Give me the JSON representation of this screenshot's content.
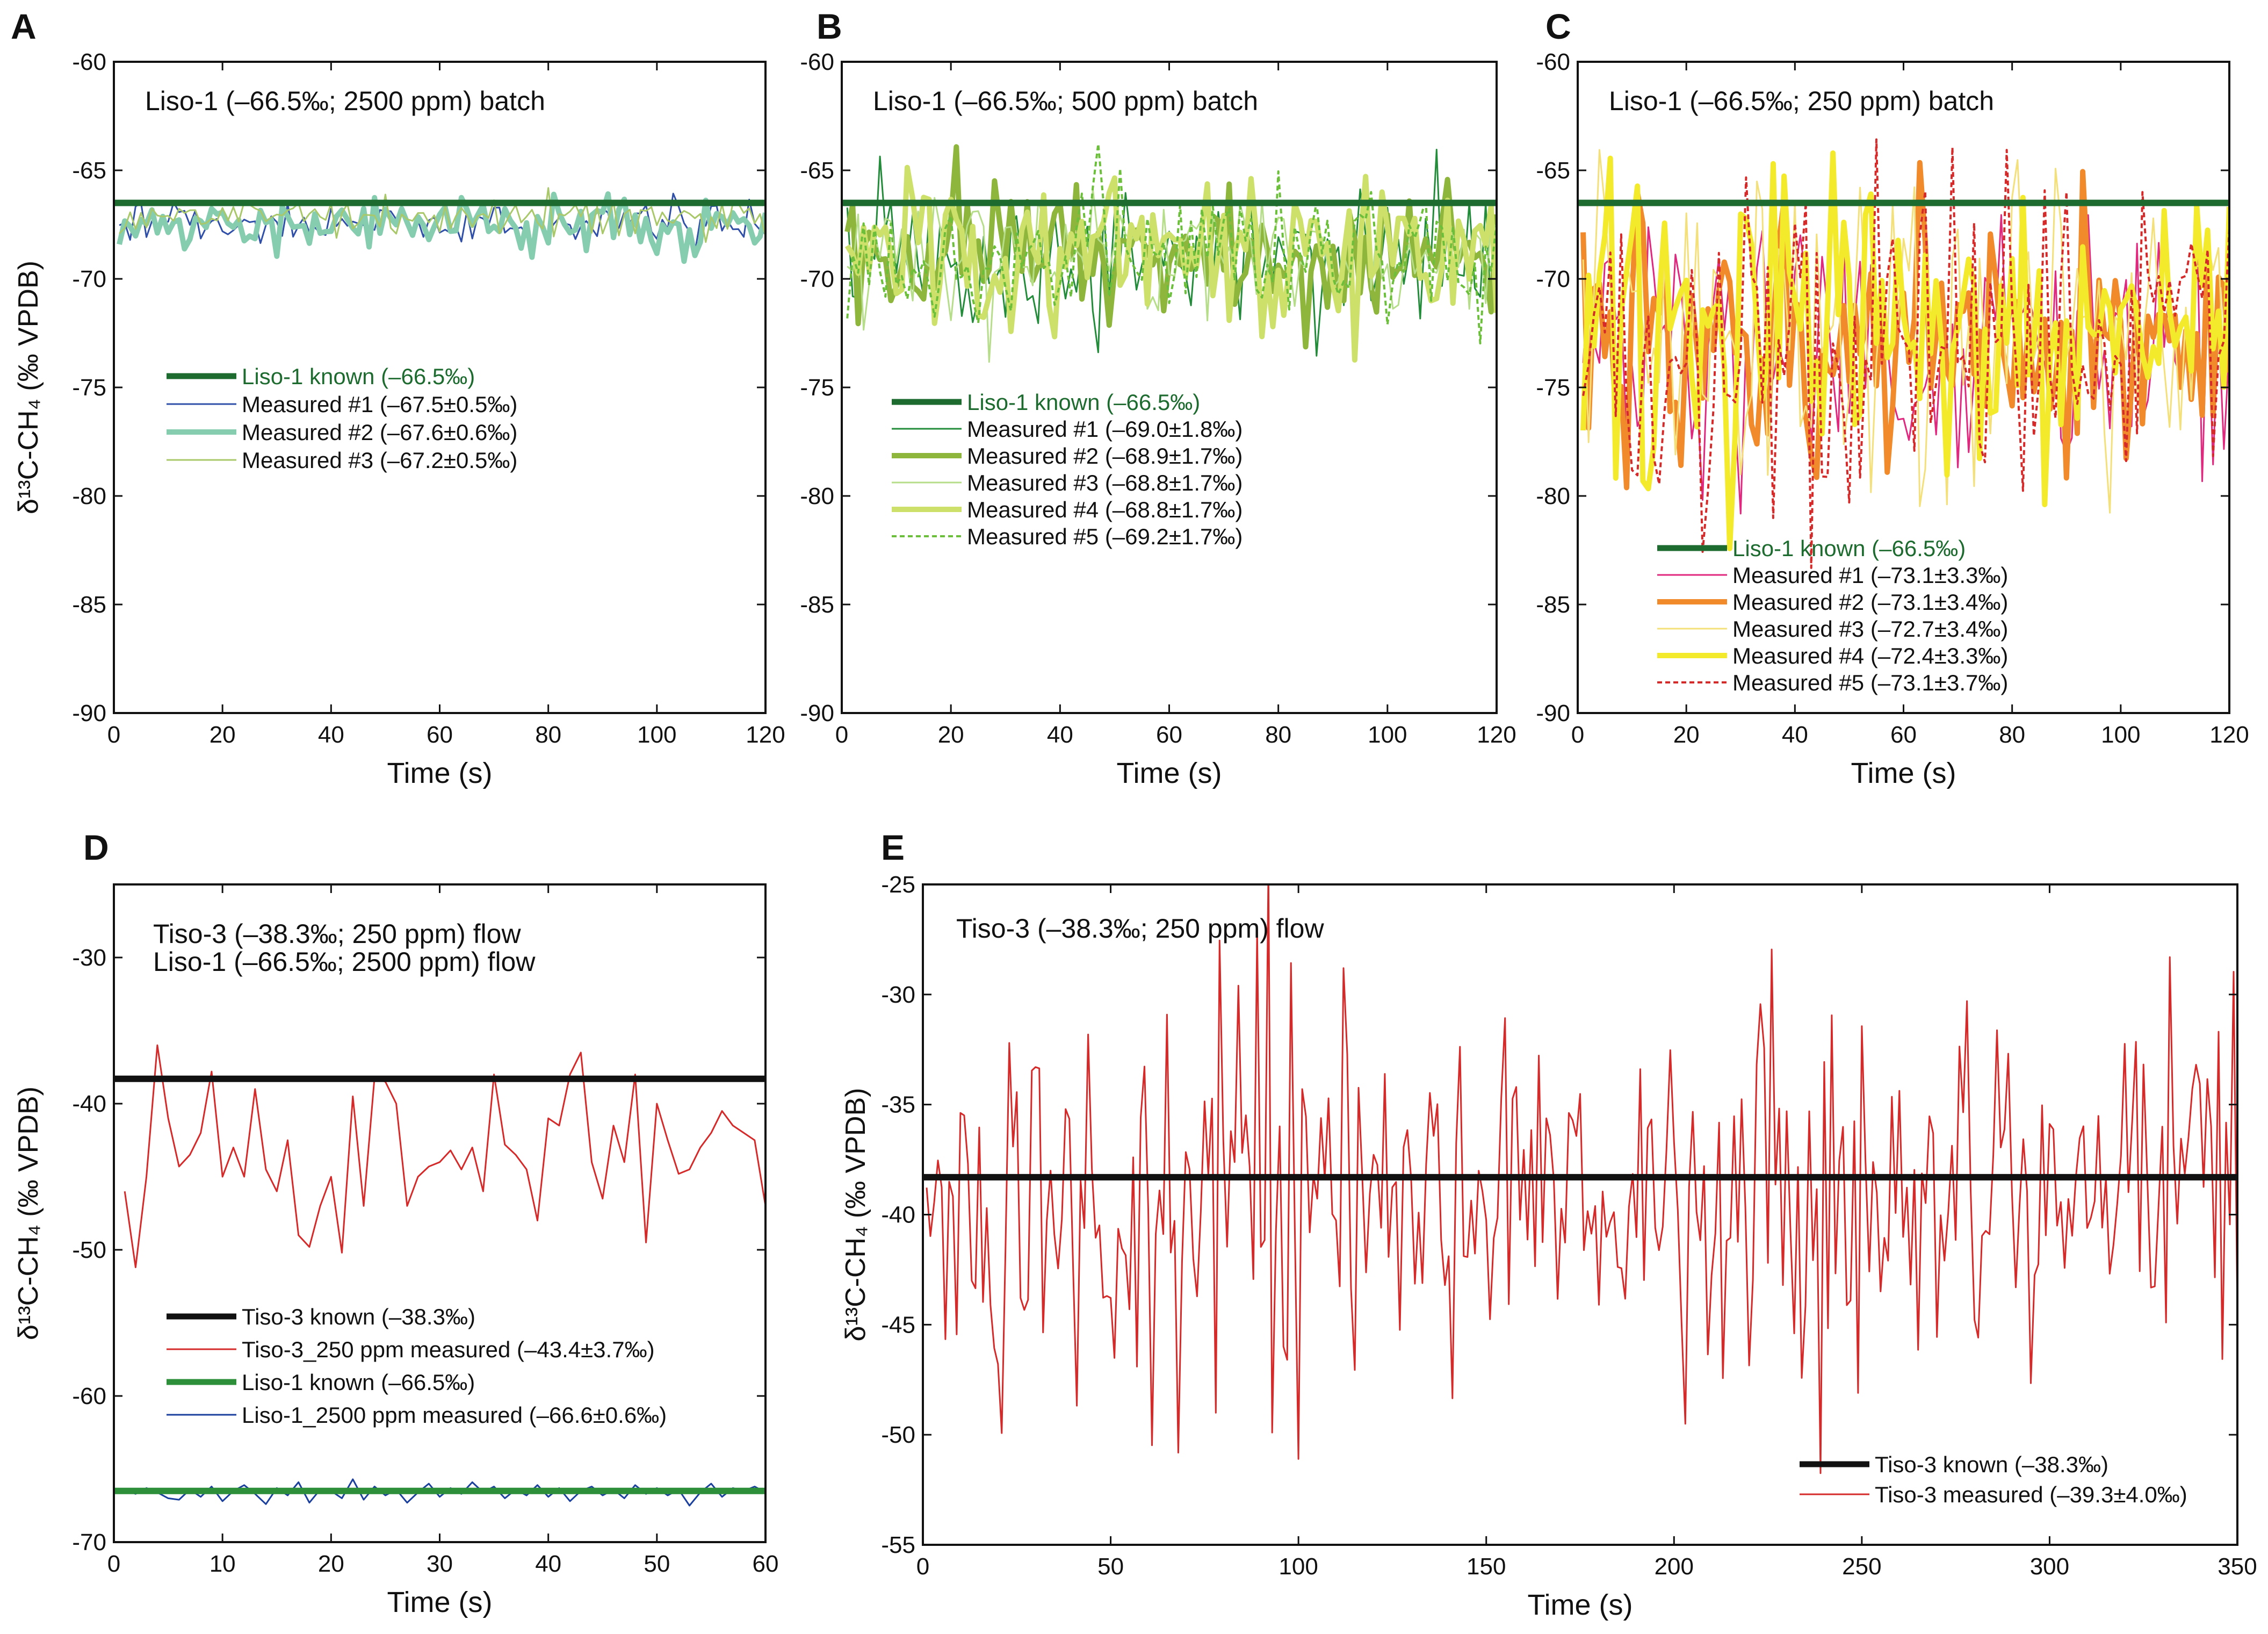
{
  "figure": {
    "panels": [
      {
        "letter": "A",
        "title": "Liso-1 (–66.5‰; 2500 ppm) batch",
        "xlabel": "Time (s)",
        "ylabel": "δ¹³C-CH₄ (‰ VPDB)",
        "xlim": [
          0,
          120
        ],
        "ylim": [
          -90,
          -60
        ],
        "xticks": [
          0,
          20,
          40,
          60,
          80,
          100,
          120
        ],
        "yticks": [
          -90,
          -85,
          -80,
          -75,
          -70,
          -65,
          -60
        ],
        "legend": [
          {
            "label": "Liso-1 known (–66.5‰)",
            "color": "#1e6b30",
            "style": "known"
          },
          {
            "label": "Measured #1 (–67.5±0.5‰)",
            "color": "#2f4fa8",
            "style": "thin"
          },
          {
            "label": "Measured #2 (–67.6±0.6‰)",
            "color": "#86cdb0",
            "style": "thick"
          },
          {
            "label": "Measured #3 (–67.2±0.5‰)",
            "color": "#a9c86a",
            "style": "thin"
          }
        ]
      },
      {
        "letter": "B",
        "title": "Liso-1 (–66.5‰; 500 ppm) batch",
        "xlabel": "Time (s)",
        "xlim": [
          0,
          120
        ],
        "ylim": [
          -90,
          -60
        ],
        "xticks": [
          0,
          20,
          40,
          60,
          80,
          100,
          120
        ],
        "yticks": [
          -90,
          -85,
          -80,
          -75,
          -70,
          -65,
          -60
        ],
        "legend": [
          {
            "label": "Liso-1 known (–66.5‰)",
            "color": "#1e6b30",
            "style": "known"
          },
          {
            "label": "Measured #1 (–69.0±1.8‰)",
            "color": "#238c3a",
            "style": "thin"
          },
          {
            "label": "Measured #2 (–68.9±1.7‰)",
            "color": "#8fb63c",
            "style": "thick"
          },
          {
            "label": "Measured #3 (–68.8±1.7‰)",
            "color": "#b6de8a",
            "style": "thin"
          },
          {
            "label": "Measured #4 (–68.8±1.7‰)",
            "color": "#cde06a",
            "style": "thick"
          },
          {
            "label": "Measured #5 (–69.2±1.7‰)",
            "color": "#6cbf3a",
            "style": "dashed"
          }
        ]
      },
      {
        "letter": "C",
        "title": "Liso-1 (–66.5‰; 250 ppm) batch",
        "xlabel": "Time (s)",
        "xlim": [
          0,
          120
        ],
        "ylim": [
          -90,
          -60
        ],
        "xticks": [
          0,
          20,
          40,
          60,
          80,
          100,
          120
        ],
        "yticks": [
          -90,
          -85,
          -80,
          -75,
          -70,
          -65,
          -60
        ],
        "legend": [
          {
            "label": "Liso-1 known (–66.5‰)",
            "color": "#1e6b30",
            "style": "known"
          },
          {
            "label": "Measured #1 (–73.1±3.3‰)",
            "color": "#e0287f",
            "style": "thin"
          },
          {
            "label": "Measured #2 (–73.1±3.4‰)",
            "color": "#f08a2a",
            "style": "thick"
          },
          {
            "label": "Measured #3 (–72.7±3.4‰)",
            "color": "#f4e07a",
            "style": "thin"
          },
          {
            "label": "Measured #4 (–72.4±3.3‰)",
            "color": "#f2ea2a",
            "style": "thick"
          },
          {
            "label": "Measured #5 (–73.1±3.7‰)",
            "color": "#d42a2a",
            "style": "dashed"
          }
        ]
      },
      {
        "letter": "D",
        "title": "Tiso-3 (–38.3‰; 250 ppm) flow",
        "title2": "Liso-1 (–66.5‰; 2500 ppm) flow",
        "xlabel": "Time (s)",
        "ylabel": "δ¹³C-CH₄ (‰ VPDB)",
        "xlim": [
          0,
          60
        ],
        "ylim": [
          -70,
          -25
        ],
        "xticks": [
          0,
          10,
          20,
          30,
          40,
          50,
          60
        ],
        "yticks": [
          -70,
          -60,
          -50,
          -40,
          -30
        ],
        "legend": [
          {
            "label": "Tiso-3 known (–38.3‰)",
            "color": "#111111",
            "style": "known"
          },
          {
            "label": "Tiso-3_250 ppm measured (–43.4±3.7‰)",
            "color": "#d42a2a",
            "style": "thin"
          },
          {
            "label": "Liso-1 known (–66.5‰)",
            "color": "#2e8f3a",
            "style": "known"
          },
          {
            "label": "Liso-1_2500 ppm measured (–66.6±0.6‰)",
            "color": "#1a3f9c",
            "style": "thin"
          }
        ]
      },
      {
        "letter": "E",
        "title": "Tiso-3 (–38.3‰; 250 ppm) flow",
        "xlabel": "Time (s)",
        "ylabel": "δ¹³C-CH₄ (‰ VPDB)",
        "xlim": [
          0,
          350
        ],
        "ylim": [
          -55,
          -25
        ],
        "xticks": [
          0,
          50,
          100,
          150,
          200,
          250,
          300,
          350
        ],
        "yticks": [
          -55,
          -50,
          -45,
          -40,
          -35,
          -30,
          -25
        ],
        "legend": [
          {
            "label": "Tiso-3 known (–38.3‰)",
            "color": "#111111",
            "style": "known"
          },
          {
            "label": "Tiso-3 measured (–39.3±4.0‰)",
            "color": "#d42a2a",
            "style": "thin"
          }
        ]
      }
    ]
  },
  "chart_data": [
    {
      "type": "line",
      "panel": "A",
      "title": "Liso-1 (–66.5‰; 2500 ppm) batch",
      "xlabel": "Time (s)",
      "ylabel": "δ¹³C-CH₄ (‰ VPDB)",
      "xlim": [
        0,
        120
      ],
      "ylim": [
        -90,
        -60
      ],
      "x_sampling": {
        "start": 1,
        "step": 1,
        "end": 120
      },
      "reference_lines": [
        {
          "name": "Liso-1 known (–66.5‰)",
          "y": -66.5,
          "color": "#1e6b30"
        }
      ],
      "series": [
        {
          "name": "Measured #1 (–67.5±0.5‰)",
          "mean": -67.5,
          "sd": 0.5,
          "color": "#2f4fa8"
        },
        {
          "name": "Measured #2 (–67.6±0.6‰)",
          "mean": -67.6,
          "sd": 0.6,
          "color": "#86cdb0"
        },
        {
          "name": "Measured #3 (–67.2±0.5‰)",
          "mean": -67.2,
          "sd": 0.5,
          "color": "#a9c86a"
        }
      ]
    },
    {
      "type": "line",
      "panel": "B",
      "title": "Liso-1 (–66.5‰; 500 ppm) batch",
      "xlabel": "Time (s)",
      "xlim": [
        0,
        120
      ],
      "ylim": [
        -90,
        -60
      ],
      "x_sampling": {
        "start": 1,
        "step": 1,
        "end": 120
      },
      "reference_lines": [
        {
          "name": "Liso-1 known (–66.5‰)",
          "y": -66.5,
          "color": "#1e6b30"
        }
      ],
      "series": [
        {
          "name": "Measured #1 (–69.0±1.8‰)",
          "mean": -69.0,
          "sd": 1.8,
          "color": "#238c3a"
        },
        {
          "name": "Measured #2 (–68.9±1.7‰)",
          "mean": -68.9,
          "sd": 1.7,
          "color": "#8fb63c"
        },
        {
          "name": "Measured #3 (–68.8±1.7‰)",
          "mean": -68.8,
          "sd": 1.7,
          "color": "#b6de8a"
        },
        {
          "name": "Measured #4 (–68.8±1.7‰)",
          "mean": -68.8,
          "sd": 1.7,
          "color": "#cde06a"
        },
        {
          "name": "Measured #5 (–69.2±1.7‰)",
          "mean": -69.2,
          "sd": 1.7,
          "color": "#6cbf3a"
        }
      ]
    },
    {
      "type": "line",
      "panel": "C",
      "title": "Liso-1 (–66.5‰; 250 ppm) batch",
      "xlabel": "Time (s)",
      "xlim": [
        0,
        120
      ],
      "ylim": [
        -90,
        -60
      ],
      "x_sampling": {
        "start": 1,
        "step": 1,
        "end": 120
      },
      "reference_lines": [
        {
          "name": "Liso-1 known (–66.5‰)",
          "y": -66.5,
          "color": "#1e6b30"
        }
      ],
      "series": [
        {
          "name": "Measured #1 (–73.1±3.3‰)",
          "mean": -73.1,
          "sd": 3.3,
          "color": "#e0287f"
        },
        {
          "name": "Measured #2 (–73.1±3.4‰)",
          "mean": -73.1,
          "sd": 3.4,
          "color": "#f08a2a"
        },
        {
          "name": "Measured #3 (–72.7±3.4‰)",
          "mean": -72.7,
          "sd": 3.4,
          "color": "#f4e07a"
        },
        {
          "name": "Measured #4 (–72.4±3.3‰)",
          "mean": -72.4,
          "sd": 3.3,
          "color": "#f2ea2a"
        },
        {
          "name": "Measured #5 (–73.1±3.7‰)",
          "mean": -73.1,
          "sd": 3.7,
          "color": "#d42a2a"
        }
      ]
    },
    {
      "type": "line",
      "panel": "D",
      "title": "Tiso-3 (–38.3‰; 250 ppm) flow / Liso-1 (–66.5‰; 2500 ppm) flow",
      "xlabel": "Time (s)",
      "ylabel": "δ¹³C-CH₄ (‰ VPDB)",
      "xlim": [
        0,
        60
      ],
      "ylim": [
        -70,
        -25
      ],
      "reference_lines": [
        {
          "name": "Tiso-3 known (–38.3‰)",
          "y": -38.3,
          "color": "#111111"
        },
        {
          "name": "Liso-1 known (–66.5‰)",
          "y": -66.5,
          "color": "#2e8f3a"
        }
      ],
      "series": [
        {
          "name": "Tiso-3_250 ppm measured (–43.4±3.7‰)",
          "color": "#d42a2a",
          "x": [
            1,
            2,
            3,
            4,
            5,
            6,
            7,
            8,
            9,
            10,
            11,
            12,
            13,
            14,
            15,
            16,
            17,
            18,
            19,
            20,
            21,
            22,
            23,
            24,
            25,
            26,
            27,
            28,
            29,
            30,
            31,
            32,
            33,
            34,
            35,
            36,
            37,
            38,
            39,
            40,
            41,
            42,
            43,
            44,
            45,
            46,
            47,
            48,
            49,
            50,
            51,
            52,
            53,
            54,
            55,
            56,
            57,
            58,
            59,
            60
          ],
          "y": [
            -46.0,
            -51.2,
            -45.0,
            -36.0,
            -41.0,
            -44.3,
            -43.5,
            -42.0,
            -37.8,
            -45.0,
            -43.0,
            -45.0,
            -39.0,
            -44.5,
            -46.0,
            -42.5,
            -49.0,
            -49.8,
            -47.0,
            -45.0,
            -50.2,
            -39.5,
            -47.0,
            -38.2,
            -38.5,
            -40.0,
            -47.0,
            -45.0,
            -44.3,
            -44.0,
            -43.2,
            -44.5,
            -43.0,
            -46.0,
            -38.0,
            -42.8,
            -43.5,
            -44.5,
            -48.0,
            -41.0,
            -41.5,
            -38.0,
            -36.5,
            -44.0,
            -46.5,
            -41.5,
            -44.0,
            -38.0,
            -49.5,
            -40.0,
            -42.5,
            -44.8,
            -44.5,
            -43.0,
            -42.0,
            -40.5,
            -41.5,
            -42.0,
            -42.5,
            -47.0
          ]
        },
        {
          "name": "Liso-1_2500 ppm measured (–66.6±0.6‰)",
          "color": "#1a3f9c",
          "x": [
            1,
            2,
            3,
            4,
            5,
            6,
            7,
            8,
            9,
            10,
            11,
            12,
            13,
            14,
            15,
            16,
            17,
            18,
            19,
            20,
            21,
            22,
            23,
            24,
            25,
            26,
            27,
            28,
            29,
            30,
            31,
            32,
            33,
            34,
            35,
            36,
            37,
            38,
            39,
            40,
            41,
            42,
            43,
            44,
            45,
            46,
            47,
            48,
            49,
            50,
            51,
            52,
            53,
            54,
            55,
            56,
            57,
            58,
            59,
            60
          ],
          "y": [
            -66.4,
            -66.7,
            -66.3,
            -66.6,
            -67.0,
            -67.1,
            -66.4,
            -66.9,
            -66.2,
            -67.2,
            -66.5,
            -66.1,
            -66.7,
            -67.4,
            -66.3,
            -66.8,
            -65.9,
            -67.3,
            -66.4,
            -66.5,
            -67.0,
            -65.7,
            -67.1,
            -66.2,
            -66.8,
            -66.4,
            -67.3,
            -66.6,
            -66.0,
            -66.9,
            -66.3,
            -66.7,
            -65.9,
            -66.6,
            -66.2,
            -67.0,
            -66.4,
            -66.8,
            -66.1,
            -66.9,
            -66.3,
            -67.2,
            -66.5,
            -66.2,
            -66.8,
            -66.4,
            -67.0,
            -66.1,
            -66.7,
            -66.3,
            -66.8,
            -66.4,
            -67.5,
            -66.6,
            -66.0,
            -66.9,
            -66.3,
            -66.5,
            -66.2,
            -66.6
          ]
        }
      ]
    },
    {
      "type": "line",
      "panel": "E",
      "title": "Tiso-3 (–38.3‰; 250 ppm) flow",
      "xlabel": "Time (s)",
      "ylabel": "δ¹³C-CH₄ (‰ VPDB)",
      "xlim": [
        0,
        350
      ],
      "ylim": [
        -55,
        -25
      ],
      "x_sampling": {
        "start": 1,
        "step": 1,
        "end": 350
      },
      "reference_lines": [
        {
          "name": "Tiso-3 known (–38.3‰)",
          "y": -38.3,
          "color": "#111111"
        }
      ],
      "series": [
        {
          "name": "Tiso-3 measured (–39.3±4.0‰)",
          "mean": -39.3,
          "sd": 4.0,
          "color": "#d42a2a",
          "notable_points": [
            [
              78,
              -49.0
            ],
            [
              84,
              -29.6
            ],
            [
              93,
              -49.9
            ],
            [
              100,
              -51.1
            ],
            [
              112,
              -28.8
            ],
            [
              203,
              -49.5
            ],
            [
              249,
              -48.1
            ],
            [
              278,
              -30.3
            ],
            [
              332,
              -28.3
            ]
          ]
        }
      ]
    }
  ]
}
